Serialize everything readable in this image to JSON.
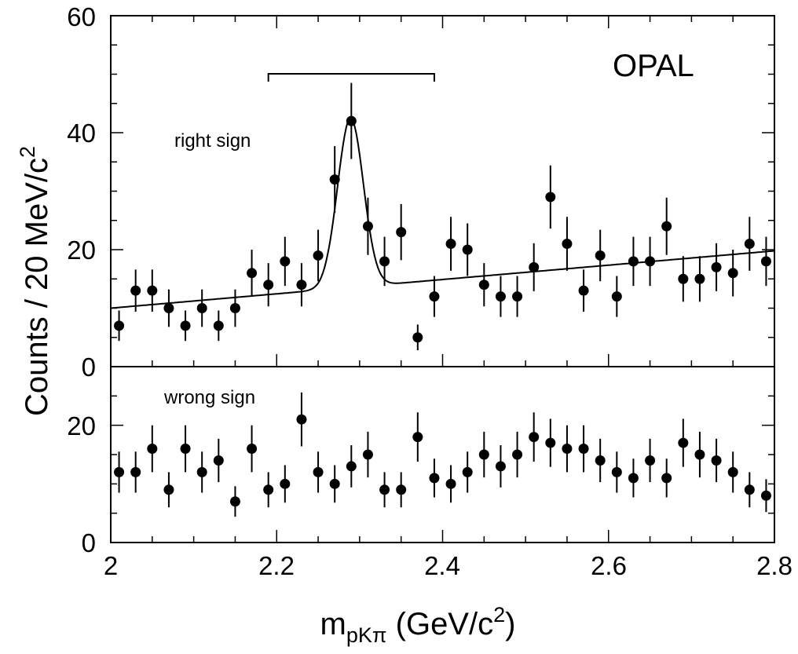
{
  "chart_data": [
    {
      "type": "scatter",
      "panel": "right sign",
      "label": "right sign",
      "experiment": "OPAL",
      "x": [
        2.01,
        2.03,
        2.05,
        2.07,
        2.09,
        2.11,
        2.13,
        2.15,
        2.17,
        2.19,
        2.21,
        2.23,
        2.25,
        2.27,
        2.29,
        2.31,
        2.33,
        2.35,
        2.37,
        2.39,
        2.41,
        2.43,
        2.45,
        2.47,
        2.49,
        2.51,
        2.53,
        2.55,
        2.57,
        2.59,
        2.61,
        2.63,
        2.65,
        2.67,
        2.69,
        2.71,
        2.73,
        2.75,
        2.77,
        2.79
      ],
      "y": [
        7,
        13,
        13,
        10,
        7,
        10,
        7,
        10,
        16,
        14,
        18,
        14,
        19,
        32,
        42,
        24,
        18,
        23,
        5,
        12,
        21,
        20,
        14,
        12,
        12,
        17,
        29,
        21,
        13,
        19,
        12,
        18,
        18,
        24,
        15,
        15,
        17,
        16,
        21,
        18
      ],
      "yerr": [
        2.6,
        3.6,
        3.6,
        3.2,
        2.6,
        3.2,
        2.6,
        3.2,
        4.0,
        3.7,
        4.2,
        3.7,
        4.4,
        5.7,
        6.5,
        4.9,
        4.2,
        4.8,
        2.2,
        3.5,
        4.6,
        4.5,
        3.7,
        3.5,
        3.5,
        4.1,
        5.4,
        4.6,
        3.6,
        4.4,
        3.5,
        4.2,
        4.2,
        4.9,
        3.9,
        3.9,
        4.1,
        4.0,
        4.6,
        4.2
      ],
      "fit": {
        "background_start": 10.0,
        "background_end": 19.8,
        "peak_mass": 2.289,
        "peak_height": 29.0,
        "peak_sigma": 0.0155
      },
      "bracket": [
        2.19,
        2.39
      ],
      "ylim": [
        0,
        60
      ],
      "yticks": [
        0,
        20,
        40,
        60
      ]
    },
    {
      "type": "scatter",
      "panel": "wrong sign",
      "label": "wrong sign",
      "x": [
        2.01,
        2.03,
        2.05,
        2.07,
        2.09,
        2.11,
        2.13,
        2.15,
        2.17,
        2.19,
        2.21,
        2.23,
        2.25,
        2.27,
        2.29,
        2.31,
        2.33,
        2.35,
        2.37,
        2.39,
        2.41,
        2.43,
        2.45,
        2.47,
        2.49,
        2.51,
        2.53,
        2.55,
        2.57,
        2.59,
        2.61,
        2.63,
        2.65,
        2.67,
        2.69,
        2.71,
        2.73,
        2.75,
        2.77,
        2.79
      ],
      "y": [
        12,
        12,
        16,
        9,
        16,
        12,
        14,
        7,
        16,
        9,
        10,
        21,
        12,
        10,
        13,
        15,
        9,
        9,
        18,
        11,
        10,
        12,
        15,
        13,
        15,
        18,
        17,
        16,
        16,
        14,
        12,
        11,
        14,
        11,
        17,
        15,
        14,
        12,
        9,
        8
      ],
      "yerr": [
        3.5,
        3.5,
        4.0,
        3.0,
        4.0,
        3.5,
        3.7,
        2.6,
        4.0,
        3.0,
        3.2,
        4.6,
        3.5,
        3.2,
        3.6,
        3.9,
        3.0,
        3.0,
        4.2,
        3.3,
        3.2,
        3.5,
        3.9,
        3.6,
        3.9,
        4.2,
        4.1,
        4.0,
        4.0,
        3.7,
        3.5,
        3.3,
        3.7,
        3.3,
        4.1,
        3.9,
        3.7,
        3.5,
        3.0,
        2.8
      ],
      "ylim": [
        0,
        30
      ],
      "yticks": [
        0,
        20
      ]
    }
  ],
  "axes": {
    "xlim": [
      2.0,
      2.8
    ],
    "xticks": [
      "2",
      "2.2",
      "2.4",
      "2.6",
      "2.8"
    ],
    "xtick_values": [
      2.0,
      2.2,
      2.4,
      2.6,
      2.8
    ],
    "ylabel": "Counts / 20 MeV/c",
    "ylabel_sup": "2",
    "xlabel_main": "m",
    "xlabel_sub": "pKπ",
    "xlabel_rest": " (GeV/c",
    "xlabel_sup": "2",
    "xlabel_close": ")",
    "upper_ticklabels": [
      "0",
      "20",
      "40",
      "60"
    ],
    "lower_ticklabels": [
      "0",
      "20"
    ]
  },
  "colors": {
    "ink": "#000000",
    "background": "#ffffff"
  }
}
